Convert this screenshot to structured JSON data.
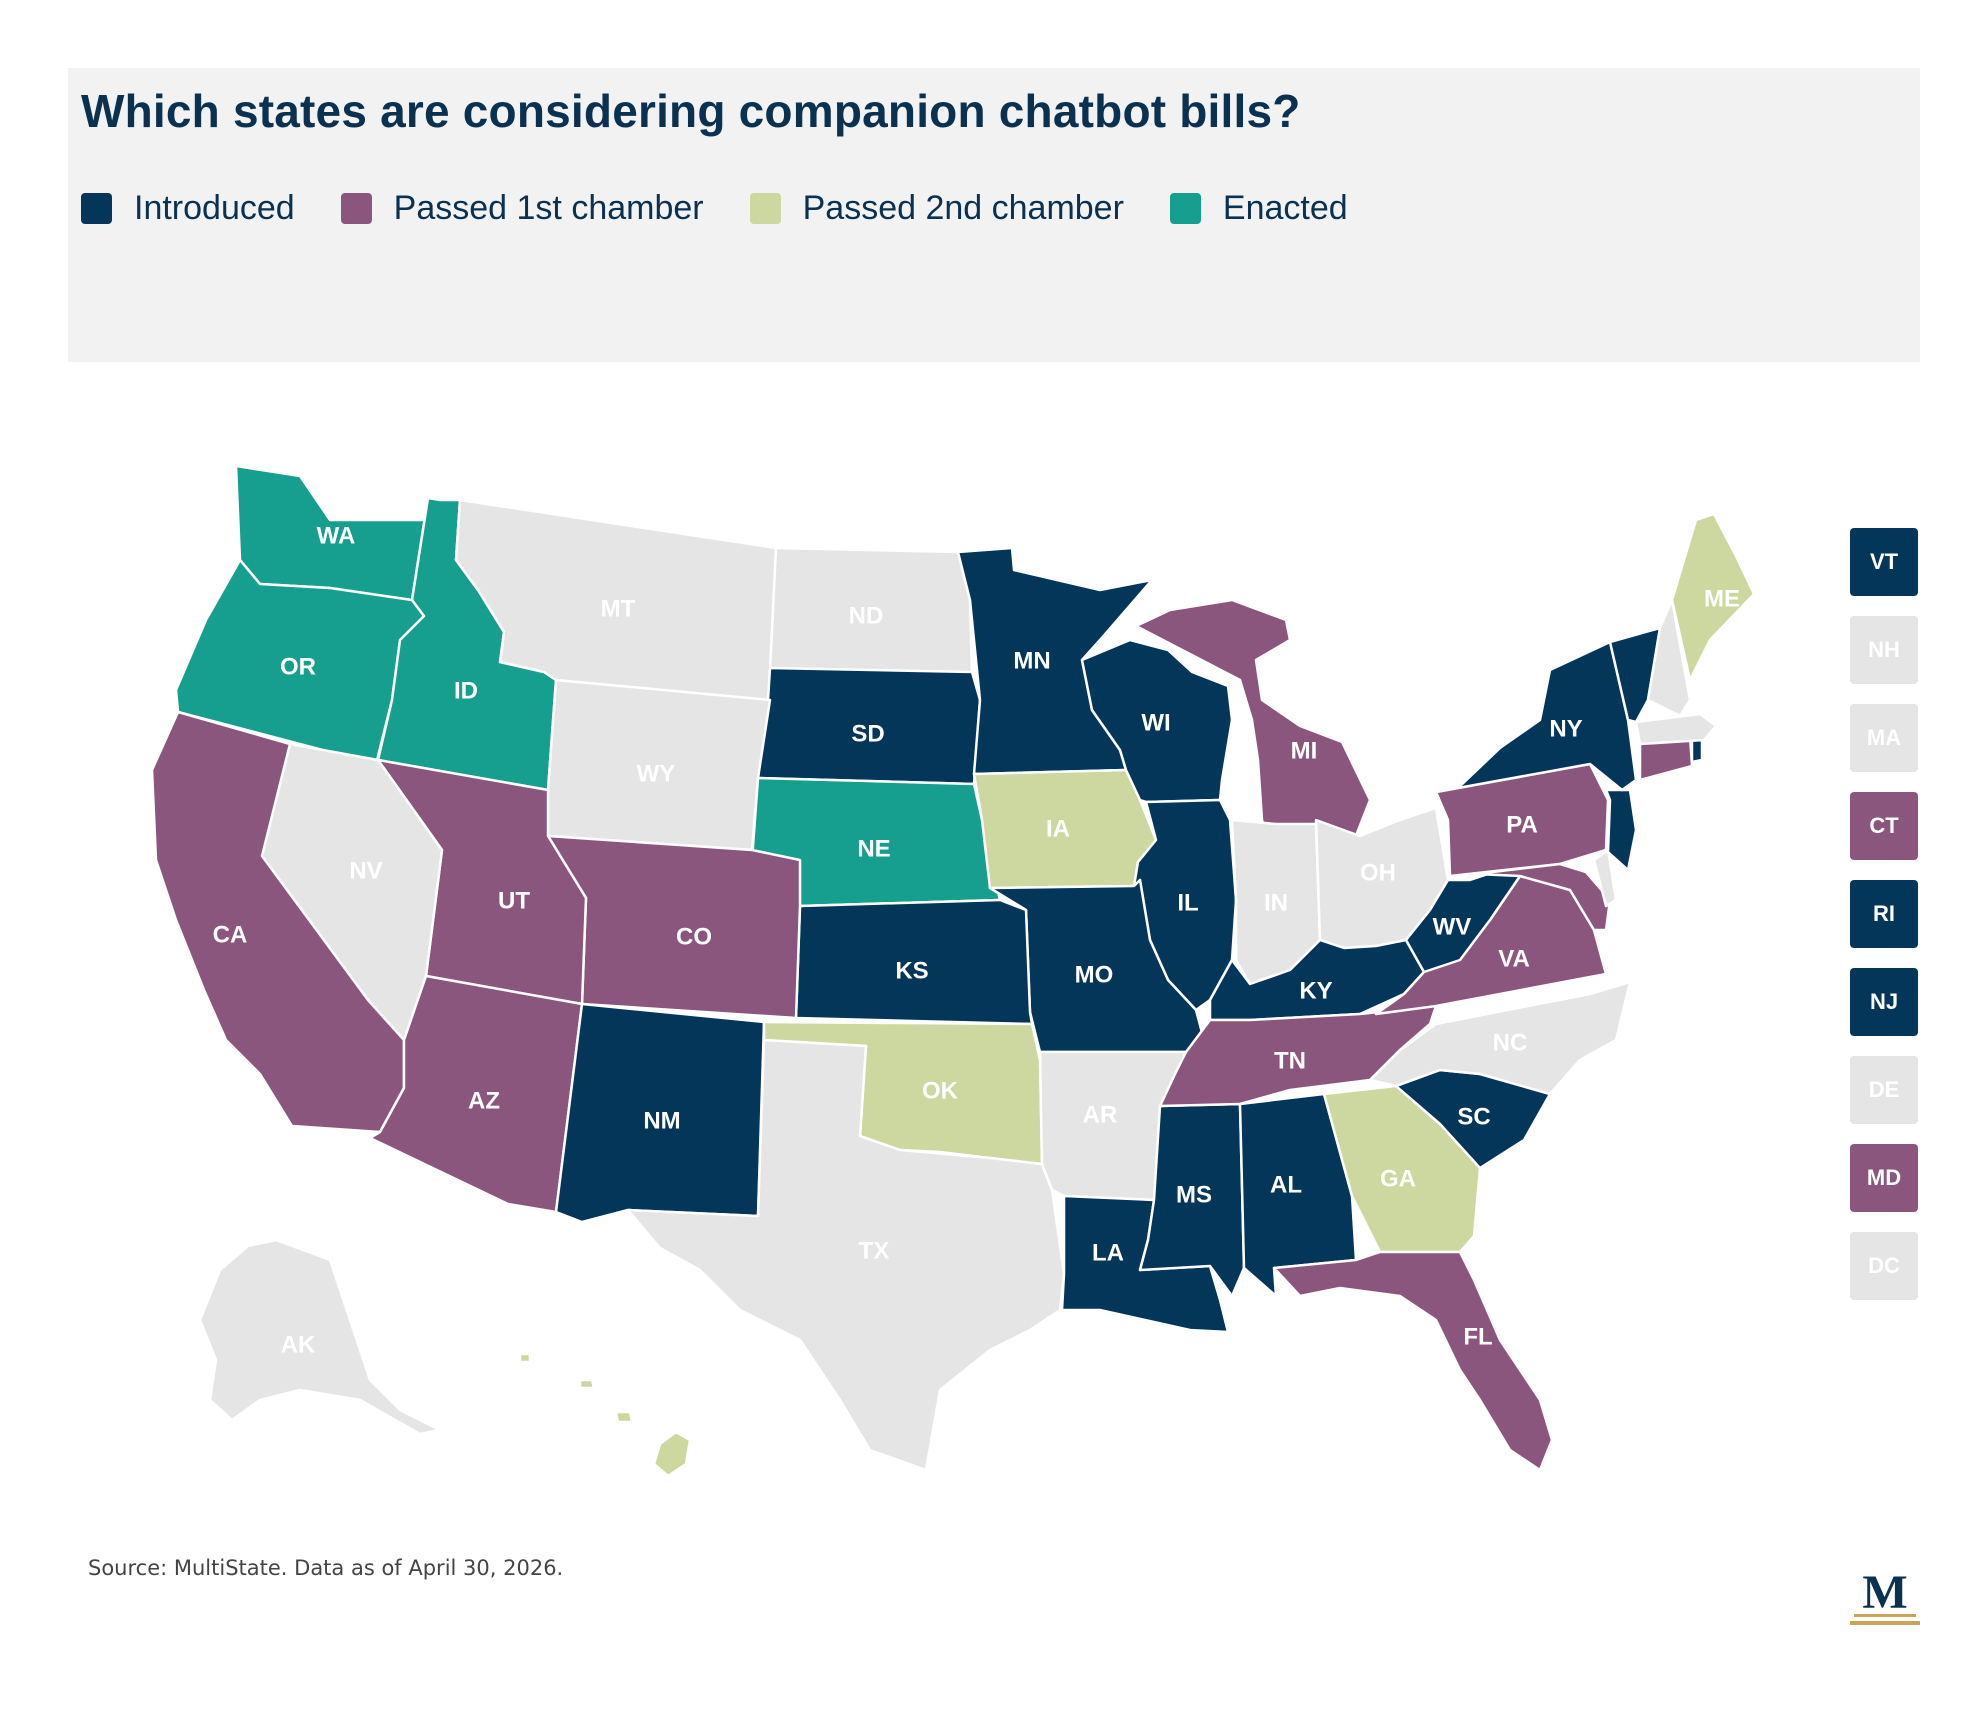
{
  "title": "Which states are considering companion chatbot bills?",
  "colors": {
    "Introduced": "#04365a",
    "Passed 1st chamber": "#8b567e",
    "Passed 2nd chamber": "#ccd89f",
    "Enacted": "#169f8f",
    "None": "#e5e5e5"
  },
  "legend": [
    {
      "label": "Introduced",
      "status": "Introduced"
    },
    {
      "label": "Passed 1st chamber",
      "status": "Passed 1st chamber"
    },
    {
      "label": "Passed 2nd chamber",
      "status": "Passed 2nd chamber"
    },
    {
      "label": "Enacted",
      "status": "Enacted"
    }
  ],
  "states": {
    "WA": "Enacted",
    "OR": "Enacted",
    "ID": "Enacted",
    "NE": "Enacted",
    "CA": "Passed 1st chamber",
    "UT": "Passed 1st chamber",
    "AZ": "Passed 1st chamber",
    "CO": "Passed 1st chamber",
    "MI": "Passed 1st chamber",
    "PA": "Passed 1st chamber",
    "TN": "Passed 1st chamber",
    "VA": "Passed 1st chamber",
    "FL": "Passed 1st chamber",
    "CT": "Passed 1st chamber",
    "MD": "Passed 1st chamber",
    "IA": "Passed 2nd chamber",
    "OK": "Passed 2nd chamber",
    "GA": "Passed 2nd chamber",
    "ME": "Passed 2nd chamber",
    "HI": "Passed 2nd chamber",
    "MN": "Introduced",
    "SD": "Introduced",
    "KS": "Introduced",
    "NM": "Introduced",
    "WI": "Introduced",
    "IL": "Introduced",
    "MO": "Introduced",
    "KY": "Introduced",
    "WV": "Introduced",
    "NY": "Introduced",
    "NJ": "Introduced",
    "SC": "Introduced",
    "AL": "Introduced",
    "MS": "Introduced",
    "LA": "Introduced",
    "VT": "Introduced",
    "RI": "Introduced",
    "MT": "None",
    "ND": "None",
    "WY": "None",
    "NV": "None",
    "TX": "None",
    "AR": "None",
    "IN": "None",
    "OH": "None",
    "NC": "None",
    "AK": "None",
    "NH": "None",
    "MA": "None",
    "DE": "None",
    "DC": "None"
  },
  "small_states": [
    "VT",
    "NH",
    "MA",
    "CT",
    "RI",
    "NJ",
    "DE",
    "MD",
    "DC"
  ],
  "source": "Source: MultiState. Data as of April 30, 2026.",
  "logo_text": "M"
}
